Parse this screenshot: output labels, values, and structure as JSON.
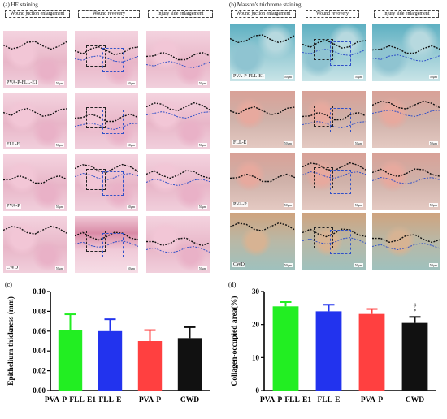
{
  "panel_a": {
    "title": "(a) HE staining",
    "headers": [
      "Wound juction enlargement",
      "Wound revovery",
      "Injury side enlargement"
    ],
    "rows": [
      "PVA-P-FLL-E1",
      "FLL-E",
      "PVA-P",
      "CWD"
    ],
    "scale": "50μm"
  },
  "panel_b": {
    "title": "(b) Masson's trichrome staining",
    "headers": [
      "Wound juction enlargement",
      "Wound revovery",
      "Injury side enlargement"
    ],
    "rows": [
      "PVA-P-FLL-E1",
      "FLL-E",
      "PVA-P",
      "CWD"
    ],
    "scale": "50μm"
  },
  "chart_data": [
    {
      "type": "bar",
      "panel_label": "(c)",
      "categories": [
        "PVA-P-FLL-E1",
        "FLL-E",
        "PVA-P",
        "CWD"
      ],
      "values": [
        0.061,
        0.06,
        0.05,
        0.053
      ],
      "errors": [
        0.016,
        0.012,
        0.011,
        0.011
      ],
      "colors": [
        "#22ee22",
        "#2233ee",
        "#ff4040",
        "#111111"
      ],
      "ylabel": "Epithelium thickness (mm)",
      "ylim": [
        0.0,
        0.1
      ],
      "yticks": [
        "0.00",
        "0.02",
        "0.04",
        "0.06",
        "0.08",
        "0.10"
      ]
    },
    {
      "type": "bar",
      "panel_label": "(d)",
      "categories": [
        "PVA-P-FLL-E1",
        "FLL-E",
        "PVA-P",
        "CWD"
      ],
      "values": [
        25.5,
        24.0,
        23.2,
        20.5
      ],
      "errors": [
        1.3,
        2.0,
        1.5,
        1.8
      ],
      "colors": [
        "#22ee22",
        "#2233ee",
        "#ff4040",
        "#111111"
      ],
      "ylabel": "Collagen-occupied area(%)",
      "ylim": [
        0,
        30
      ],
      "yticks": [
        "0",
        "10",
        "20",
        "30"
      ],
      "annotations": [
        "#",
        "*"
      ]
    }
  ]
}
